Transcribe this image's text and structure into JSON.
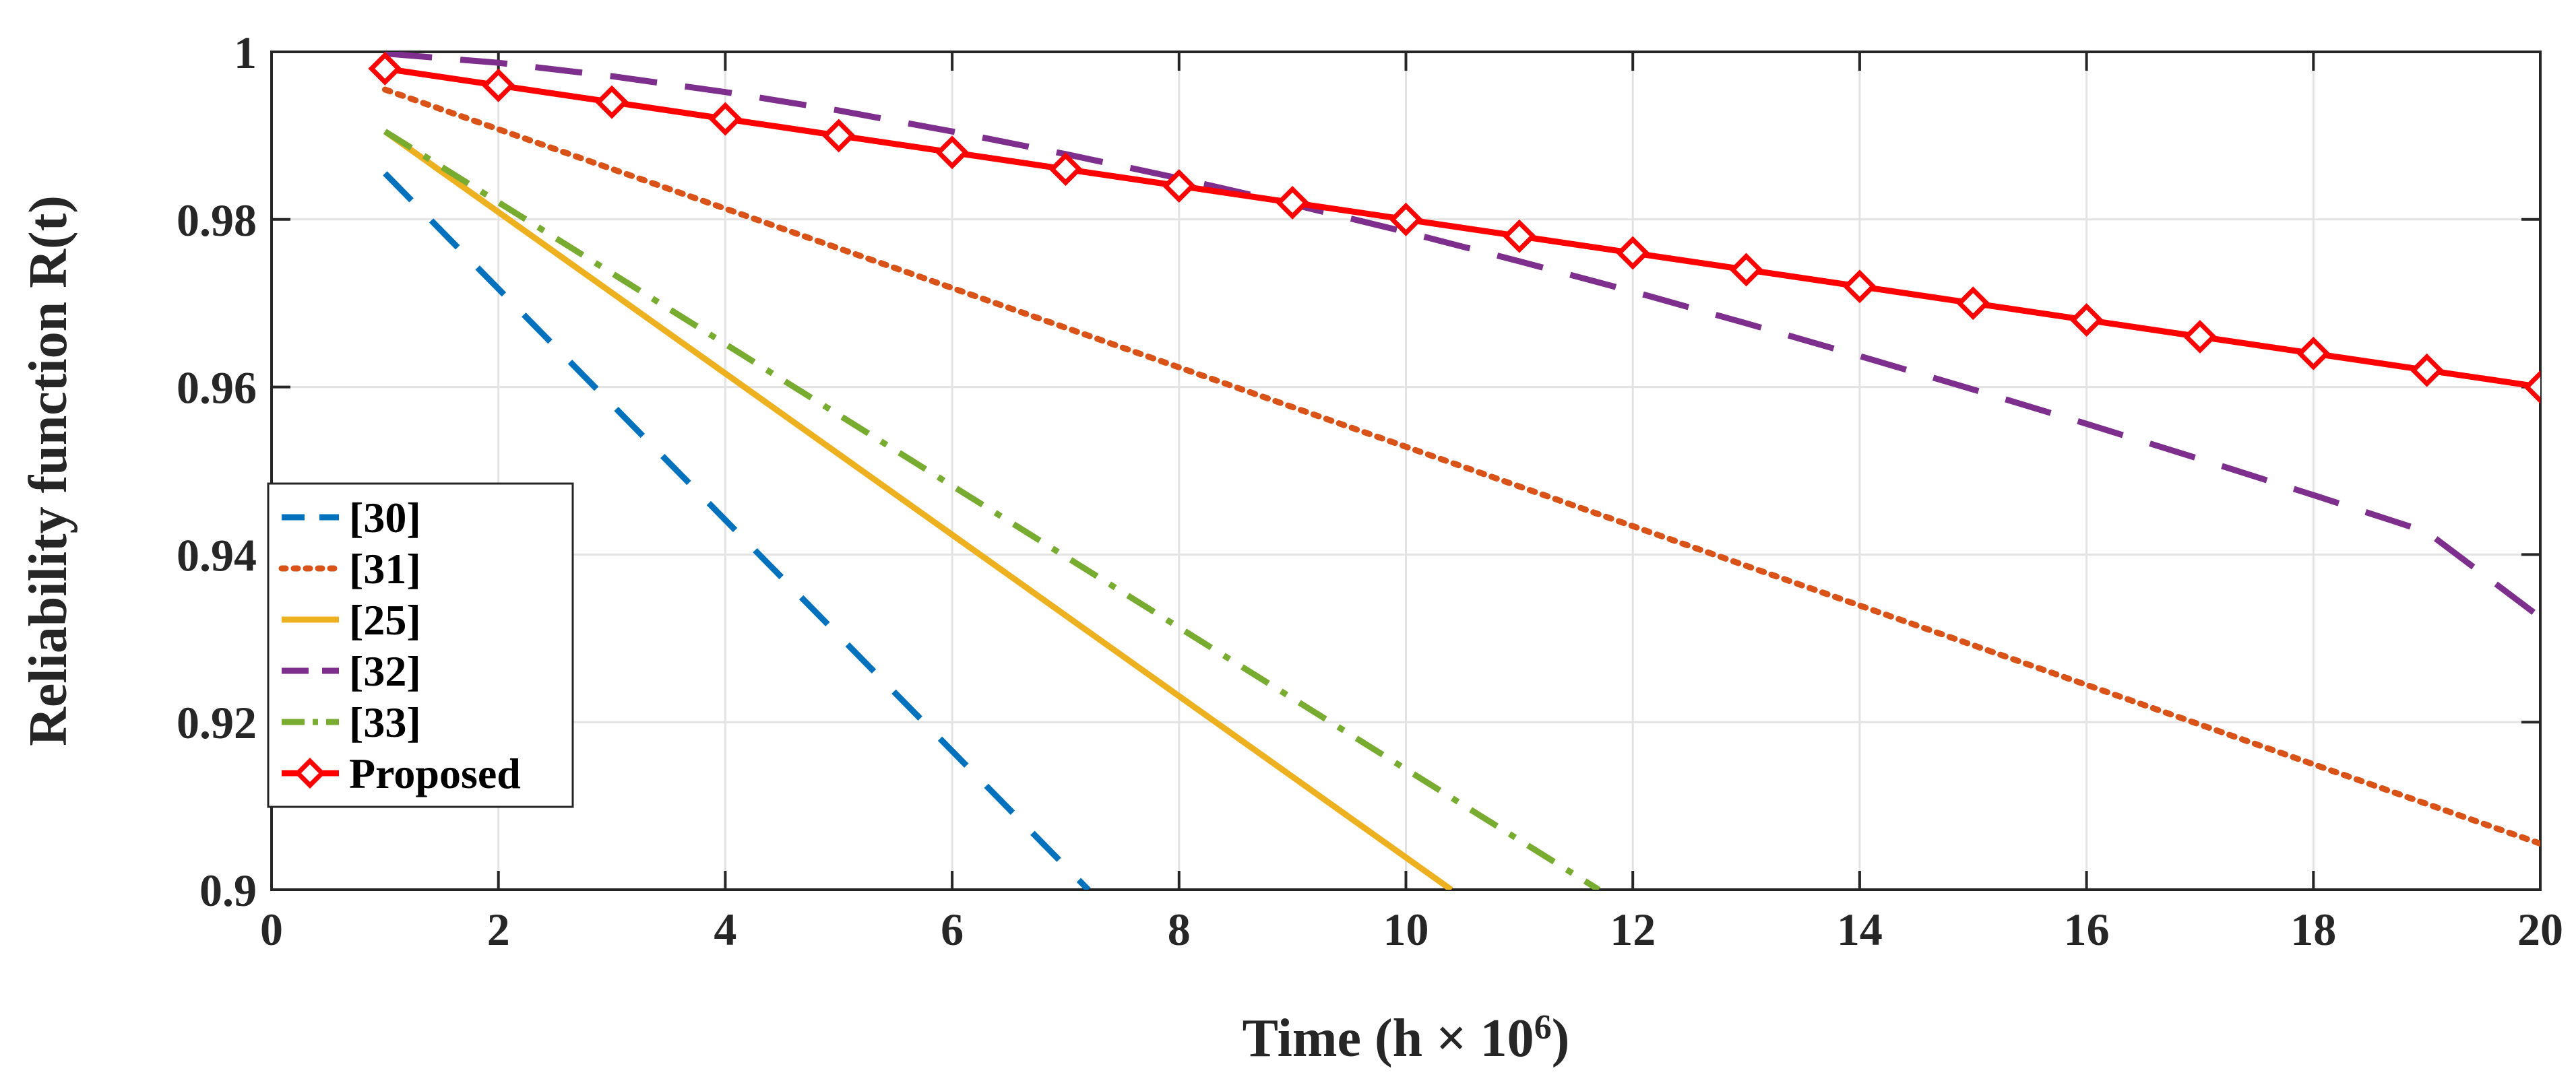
{
  "chart_data": {
    "type": "line",
    "title": "",
    "xlabel": "Time (h × 10",
    "xlabel_sup": "6",
    "xlabel_close": ")",
    "ylabel": "Reliability function R(t)",
    "xlim": [
      0,
      20
    ],
    "ylim": [
      0.9,
      1.0
    ],
    "xticks": [
      0,
      2,
      4,
      6,
      8,
      10,
      12,
      14,
      16,
      18,
      20
    ],
    "xtick_labels": [
      "0",
      "2",
      "4",
      "6",
      "8",
      "10",
      "12",
      "14",
      "16",
      "18",
      "20"
    ],
    "yticks": [
      0.9,
      0.92,
      0.94,
      0.96,
      0.98,
      1.0
    ],
    "ytick_labels": [
      "0.9",
      "0.92",
      "0.94",
      "0.96",
      "0.98",
      "1"
    ],
    "grid": true,
    "legend_position": "bottom-left",
    "series": [
      {
        "name": "[30]",
        "color": "#0072BD",
        "style": "dashed",
        "marker": "none",
        "x": [
          1,
          7.2
        ],
        "y": [
          0.9855,
          0.9
        ]
      },
      {
        "name": "[31]",
        "color": "#D95319",
        "style": "dotted",
        "marker": "none",
        "x": [
          1,
          20
        ],
        "y": [
          0.9955,
          0.9055
        ]
      },
      {
        "name": "[25]",
        "color": "#EDB120",
        "style": "solid",
        "marker": "none",
        "x": [
          1,
          10.4
        ],
        "y": [
          0.9905,
          0.9
        ]
      },
      {
        "name": "[32]",
        "color": "#7E2F8E",
        "style": "dashed-long",
        "marker": "none",
        "x": [
          1,
          2,
          3,
          4,
          5,
          6,
          7,
          8,
          9,
          10,
          11,
          12,
          13,
          14,
          15,
          16,
          17,
          18,
          19,
          20
        ],
        "y": [
          0.9998,
          0.9987,
          0.9971,
          0.9952,
          0.993,
          0.9905,
          0.9878,
          0.9849,
          0.9818,
          0.9785,
          0.975,
          0.9714,
          0.9676,
          0.9637,
          0.9597,
          0.9556,
          0.9514,
          0.9471,
          0.9427,
          0.9325
        ]
      },
      {
        "name": "[33]",
        "color": "#77AC30",
        "style": "dashdot",
        "marker": "none",
        "x": [
          1,
          11.7
        ],
        "y": [
          0.9905,
          0.9
        ]
      },
      {
        "name": "Proposed",
        "color": "#FF0000",
        "style": "solid",
        "marker": "diamond",
        "x": [
          1,
          2,
          3,
          4,
          5,
          6,
          7,
          8,
          9,
          10,
          11,
          12,
          13,
          14,
          15,
          16,
          17,
          18,
          19,
          20
        ],
        "y": [
          0.998,
          0.996,
          0.994,
          0.992,
          0.99,
          0.988,
          0.986,
          0.984,
          0.982,
          0.98,
          0.978,
          0.976,
          0.974,
          0.972,
          0.97,
          0.968,
          0.966,
          0.964,
          0.962,
          0.96
        ]
      }
    ]
  }
}
